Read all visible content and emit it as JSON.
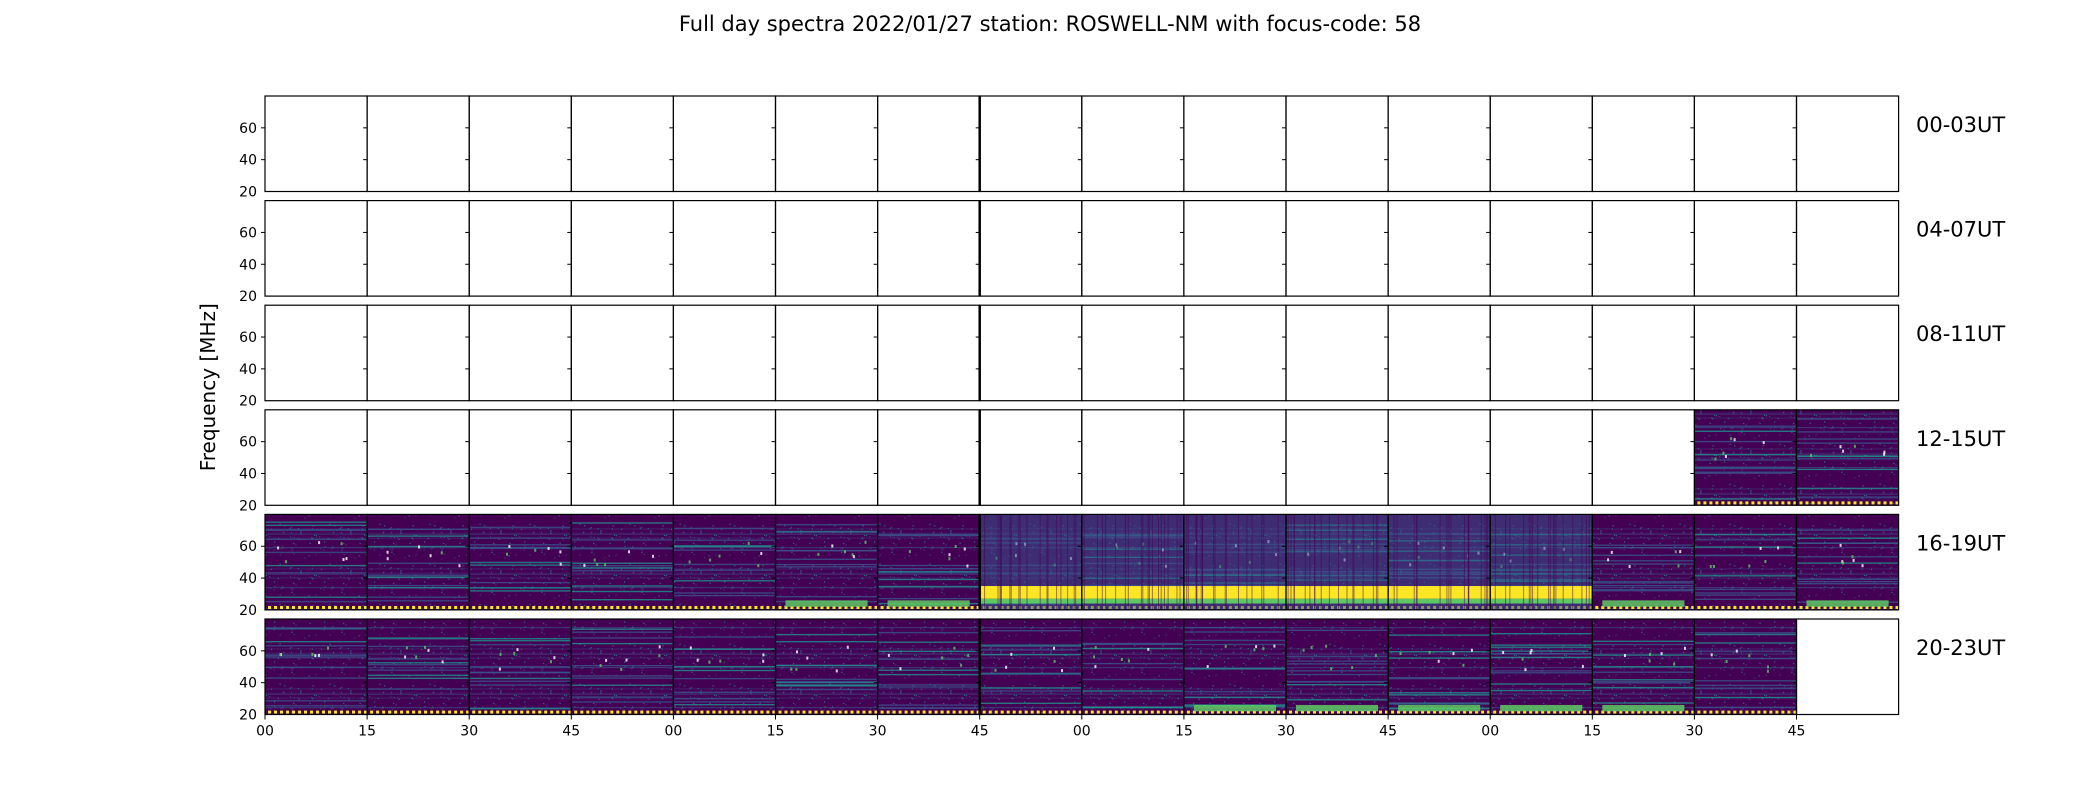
{
  "title": "Full day spectra 2022/01/27 station: ROSWELL-NM with focus-code: 58",
  "chart_data": {
    "type": "heatmap",
    "ylabel": "Frequency [MHz]",
    "xlabel": "",
    "ylim": [
      20,
      80
    ],
    "yticks": [
      20,
      40,
      60
    ],
    "grid": false,
    "xtick_labels": [
      "00",
      "15",
      "30",
      "45",
      "00",
      "15",
      "30",
      "45",
      "00",
      "15",
      "30",
      "45",
      "00",
      "15",
      "30",
      "45"
    ],
    "rows": [
      {
        "label": "00-03UT",
        "data_panels": []
      },
      {
        "label": "04-07UT",
        "data_panels": []
      },
      {
        "label": "08-11UT",
        "data_panels": []
      },
      {
        "label": "12-15UT",
        "data_panels": [
          14,
          15
        ]
      },
      {
        "label": "16-19UT",
        "data_panels": [
          0,
          1,
          2,
          3,
          4,
          5,
          6,
          7,
          8,
          9,
          10,
          11,
          12,
          13,
          14,
          15
        ]
      },
      {
        "label": "20-23UT",
        "data_panels": [
          0,
          1,
          2,
          3,
          4,
          5,
          6,
          7,
          8,
          9,
          10,
          11,
          12,
          13,
          14
        ]
      }
    ],
    "colormap": {
      "low": "#440154",
      "mid": "#3b528b",
      "teal": "#21918c",
      "green": "#5ec962",
      "high": "#fde725"
    },
    "bright_bands": [
      {
        "row": 4,
        "panels": [
          7,
          8,
          9,
          10,
          11,
          12
        ],
        "level": "high"
      },
      {
        "row": 4,
        "panels": [
          5,
          6,
          13,
          15
        ],
        "level": "green"
      },
      {
        "row": 5,
        "panels": [
          9,
          10,
          11,
          12,
          13
        ],
        "level": "green"
      }
    ]
  }
}
